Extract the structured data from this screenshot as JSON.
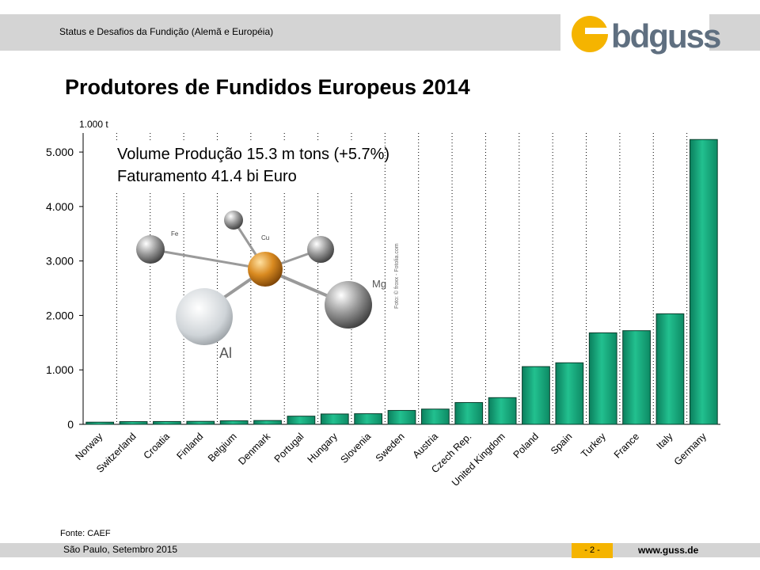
{
  "header": {
    "subtitle": "Status e Desafios da Fundição (Alemã e Européia)",
    "logo_text": "bdguss"
  },
  "title": "Produtores de Fundidos Europeus 2014",
  "annotation": {
    "line1": "Volume Produção 15.3 m tons (+5.7%)",
    "line2": "Faturamento 41.4 bi Euro"
  },
  "photo": {
    "labels": [
      "Fe",
      "Cu",
      "Mg",
      "Al"
    ],
    "credit": "Foto: © froxx - Fotolia.com"
  },
  "footer": {
    "source": "Fonte: CAEF",
    "location_date": "São Paulo, Setembro 2015",
    "page": "- 2 -",
    "url": "www.guss.de"
  },
  "colors": {
    "bar": "#1aa37a",
    "accent": "#f5b400",
    "bar_band": "#d4d4d4"
  },
  "chart_data": {
    "type": "bar",
    "ylabel": "1.000 t",
    "ylim": [
      0,
      5000
    ],
    "yticks": [
      0,
      1000,
      2000,
      3000,
      4000,
      5000
    ],
    "ytick_labels": [
      "0",
      "1.000",
      "2.000",
      "3.000",
      "4.000",
      "5.000"
    ],
    "grid": "vertical dotted",
    "categories": [
      "Norway",
      "Switzerland",
      "Croatia",
      "Finland",
      "Belgium",
      "Denmark",
      "Portugal",
      "Hungary",
      "Slovenia",
      "Sweden",
      "Austria",
      "Czech Rep.",
      "United Kingdom",
      "Poland",
      "Spain",
      "Turkey",
      "France",
      "Italy",
      "Germany"
    ],
    "values": [
      40,
      50,
      52,
      55,
      65,
      70,
      150,
      190,
      195,
      255,
      280,
      400,
      490,
      1060,
      1130,
      1680,
      1720,
      2030,
      5230
    ]
  }
}
